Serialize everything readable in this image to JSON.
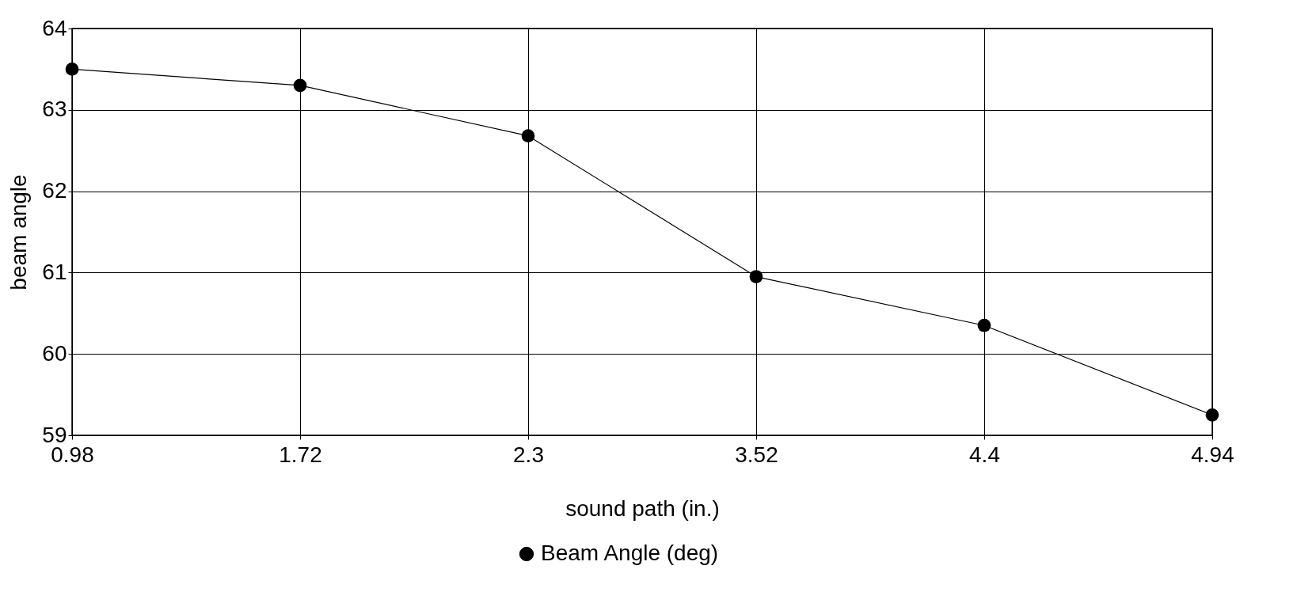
{
  "chart_data": {
    "type": "line",
    "xlabel": "sound path (in.)",
    "ylabel": "beam angle",
    "categories": [
      "0.98",
      "1.72",
      "2.3",
      "3.52",
      "4.4",
      "4.94"
    ],
    "series": [
      {
        "name": "Beam Angle (deg)",
        "color": "#000000",
        "values": [
          63.5,
          63.3,
          62.68,
          60.95,
          60.35,
          59.25
        ]
      }
    ],
    "ylim": [
      59,
      64
    ],
    "yticks": [
      59,
      60,
      61,
      62,
      63,
      64
    ],
    "grid": true,
    "legend": "bottom",
    "marker": "circle",
    "line_style": "solid"
  }
}
